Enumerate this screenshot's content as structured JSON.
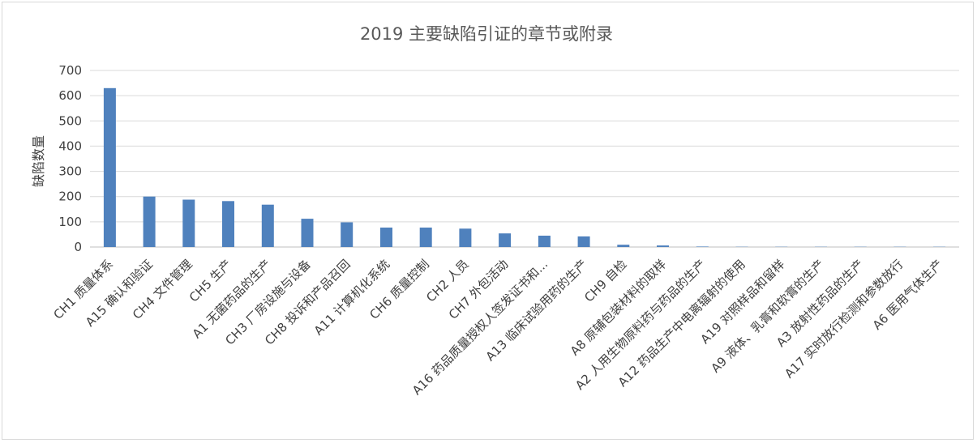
{
  "chart_data": {
    "type": "bar",
    "title": "2019 主要缺陷引证的章节或附录",
    "xlabel": "",
    "ylabel": "缺陷数量",
    "ylim": [
      0,
      700
    ],
    "yticks": [
      0,
      100,
      200,
      300,
      400,
      500,
      600,
      700
    ],
    "grid": true,
    "legend": "none",
    "bar_color": "#4f81bd",
    "categories": [
      "CH1 质量体系",
      "A15 确认和验证",
      "CH4 文件管理",
      "CH5 生产",
      "A1 无菌药品的生产",
      "CH3 厂房设施与设备",
      "CH8 投诉和产品召回",
      "A11 计算机化系统",
      "CH6 质量控制",
      "CH2 人员",
      "CH7 外包活动",
      "A16 药品质量授权人签发证书和...",
      "A13 临床试验用药的生产",
      "CH9 自检",
      "A8 原辅包装材料的取样",
      "A2 人用生物原料药与药品的生产",
      "A12 药品生产中电离辐射的使用",
      "A19 对照样品和留样",
      "A9 液体、乳膏和软膏的生产",
      "A3 放射性药品的生产",
      "A17 实时放行检测和参数放行",
      "A6 医用气体生产"
    ],
    "values": [
      630,
      200,
      188,
      182,
      168,
      112,
      98,
      77,
      77,
      73,
      54,
      45,
      42,
      9,
      6,
      2,
      1,
      1,
      1,
      1,
      1,
      1
    ]
  }
}
